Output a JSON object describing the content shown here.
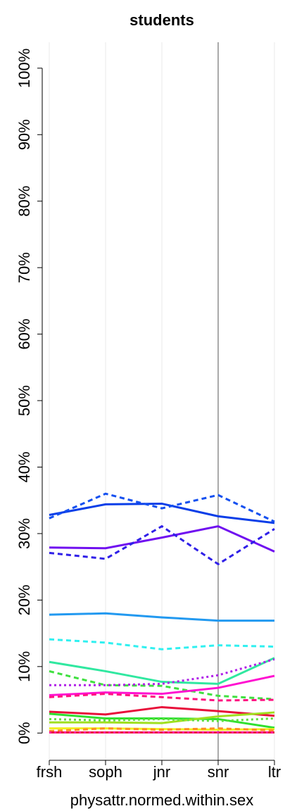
{
  "chart_data": {
    "type": "line",
    "title": "students",
    "xlabel": "physattr.normed.within.sex",
    "categories": [
      "frsh",
      "soph",
      "jnr",
      "snr",
      "ltr"
    ],
    "reference_category": "snr",
    "ylim": [
      -4.1,
      103.9
    ],
    "yticks": [
      {
        "value": 0,
        "label": "0%"
      },
      {
        "value": 10,
        "label": "10%"
      },
      {
        "value": 20,
        "label": "20%"
      },
      {
        "value": 30,
        "label": "30%"
      },
      {
        "value": 40,
        "label": "40%"
      },
      {
        "value": 50,
        "label": "50%"
      },
      {
        "value": 60,
        "label": "60%"
      },
      {
        "value": 70,
        "label": "70%"
      },
      {
        "value": 80,
        "label": "80%"
      },
      {
        "value": 90,
        "label": "90%"
      },
      {
        "value": 100,
        "label": "100%"
      }
    ],
    "grid": true,
    "series": [
      {
        "color": "#0a3ee8",
        "dash": "solid",
        "values": [
          32.8,
          34.4,
          34.5,
          32.6,
          31.6
        ]
      },
      {
        "color": "#1450f0",
        "dash": "dashed",
        "values": [
          32.3,
          36.0,
          33.8,
          35.8,
          31.8
        ]
      },
      {
        "color": "#7010f0",
        "dash": "solid",
        "values": [
          27.9,
          27.8,
          29.4,
          31.1,
          27.3
        ]
      },
      {
        "color": "#3020e8",
        "dash": "dashed",
        "values": [
          27.1,
          26.2,
          31.1,
          25.4,
          30.7
        ]
      },
      {
        "color": "#2299f0",
        "dash": "solid",
        "values": [
          17.8,
          18.0,
          17.4,
          16.9,
          16.9
        ]
      },
      {
        "color": "#30f0f0",
        "dash": "dashed",
        "values": [
          14.1,
          13.6,
          12.6,
          13.2,
          13.0
        ]
      },
      {
        "color": "#30e8a0",
        "dash": "solid",
        "values": [
          10.7,
          9.3,
          7.7,
          7.4,
          11.3
        ]
      },
      {
        "color": "#40e040",
        "dash": "dashed",
        "values": [
          9.3,
          7.2,
          7.1,
          5.6,
          5.1
        ]
      },
      {
        "color": "#b020e8",
        "dash": "dotted",
        "values": [
          7.2,
          7.2,
          7.4,
          8.7,
          11.1
        ]
      },
      {
        "color": "#ff10d0",
        "dash": "solid",
        "values": [
          5.7,
          6.1,
          5.9,
          6.8,
          8.6
        ]
      },
      {
        "color": "#ff1080",
        "dash": "dashed",
        "values": [
          5.4,
          5.9,
          5.4,
          4.9,
          5.0
        ]
      },
      {
        "color": "#e8103a",
        "dash": "solid",
        "values": [
          3.2,
          2.8,
          3.9,
          3.3,
          2.6
        ]
      },
      {
        "color": "#30e030",
        "dash": "solid",
        "values": [
          2.9,
          2.2,
          2.2,
          2.1,
          0.8
        ]
      },
      {
        "color": "#a0e020",
        "dash": "solid",
        "values": [
          1.6,
          1.6,
          1.5,
          2.5,
          3.1
        ]
      },
      {
        "color": "#60e040",
        "dash": "dotted",
        "values": [
          2.1,
          1.9,
          2.1,
          1.8,
          2.2
        ]
      },
      {
        "color": "#f0f020",
        "dash": "solid",
        "values": [
          0.7,
          0.7,
          0.6,
          0.5,
          0.6
        ]
      },
      {
        "color": "#ff9020",
        "dash": "dashed",
        "values": [
          0.3,
          0.7,
          0.5,
          0.7,
          0.4
        ]
      },
      {
        "color": "#e8103a",
        "dash": "solid",
        "values": [
          0.1,
          0.1,
          0.1,
          0.1,
          0.1
        ]
      },
      {
        "color": "#ff10a0",
        "dash": "dotted",
        "values": [
          0.1,
          0.1,
          0.1,
          0.1,
          0.1
        ]
      }
    ]
  }
}
